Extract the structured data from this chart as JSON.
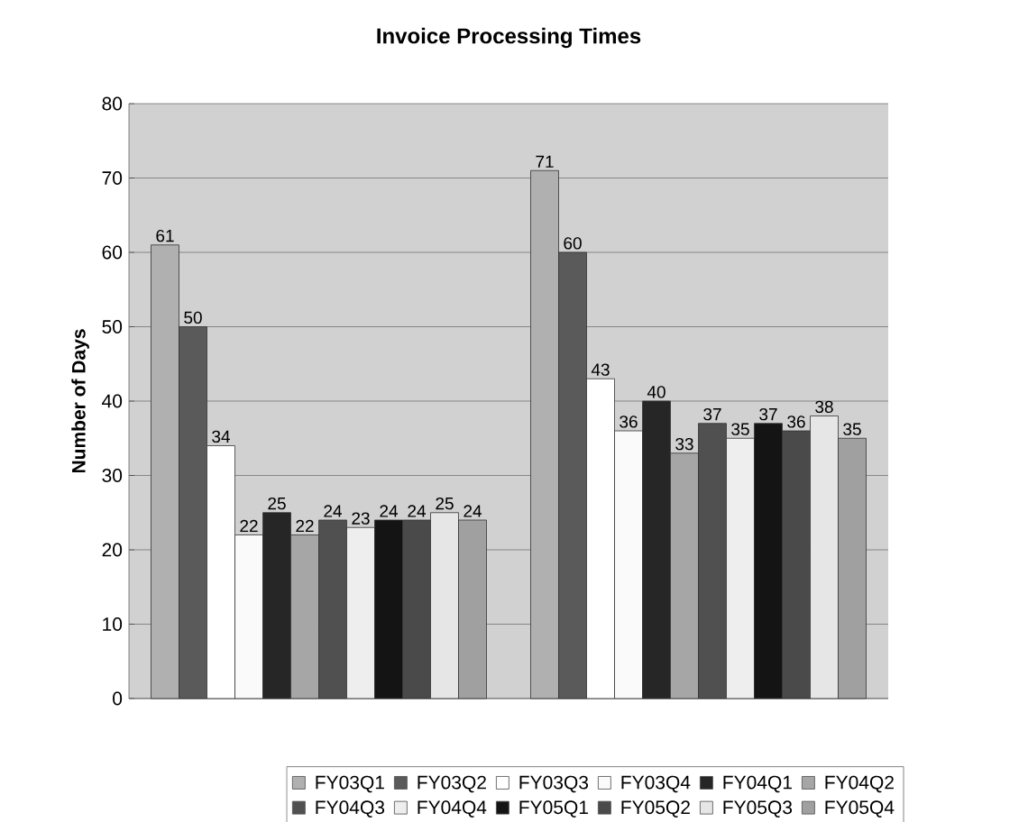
{
  "chart_data": {
    "type": "bar",
    "title": "Invoice Processing Times",
    "ylabel": "Number of Days",
    "categories": [
      null,
      null
    ],
    "series": [
      {
        "name": "FY03Q1",
        "color": "#b0b0b0",
        "values": [
          61,
          71
        ]
      },
      {
        "name": "FY03Q2",
        "color": "#5a5a5a",
        "values": [
          50,
          60
        ]
      },
      {
        "name": "FY03Q3",
        "color": "#ffffff",
        "values": [
          34,
          43
        ]
      },
      {
        "name": "FY03Q4",
        "color": "#fafafa",
        "values": [
          22,
          36
        ]
      },
      {
        "name": "FY04Q1",
        "color": "#262626",
        "values": [
          25,
          40
        ]
      },
      {
        "name": "FY04Q2",
        "color": "#a6a6a6",
        "values": [
          22,
          33
        ]
      },
      {
        "name": "FY04Q3",
        "color": "#505050",
        "values": [
          24,
          37
        ]
      },
      {
        "name": "FY04Q4",
        "color": "#eeeeee",
        "values": [
          23,
          35
        ]
      },
      {
        "name": "FY05Q1",
        "color": "#141414",
        "values": [
          24,
          37
        ]
      },
      {
        "name": "FY05Q2",
        "color": "#4a4a4a",
        "values": [
          24,
          36
        ]
      },
      {
        "name": "FY05Q3",
        "color": "#e6e6e6",
        "values": [
          25,
          38
        ]
      },
      {
        "name": "FY05Q4",
        "color": "#a0a0a0",
        "values": [
          24,
          35
        ]
      }
    ],
    "ylim": [
      0,
      80
    ],
    "yticks": [
      0,
      10,
      20,
      30,
      40,
      50,
      60,
      70,
      80
    ],
    "grid": "y",
    "legend": "bottom",
    "data_labels": true
  }
}
